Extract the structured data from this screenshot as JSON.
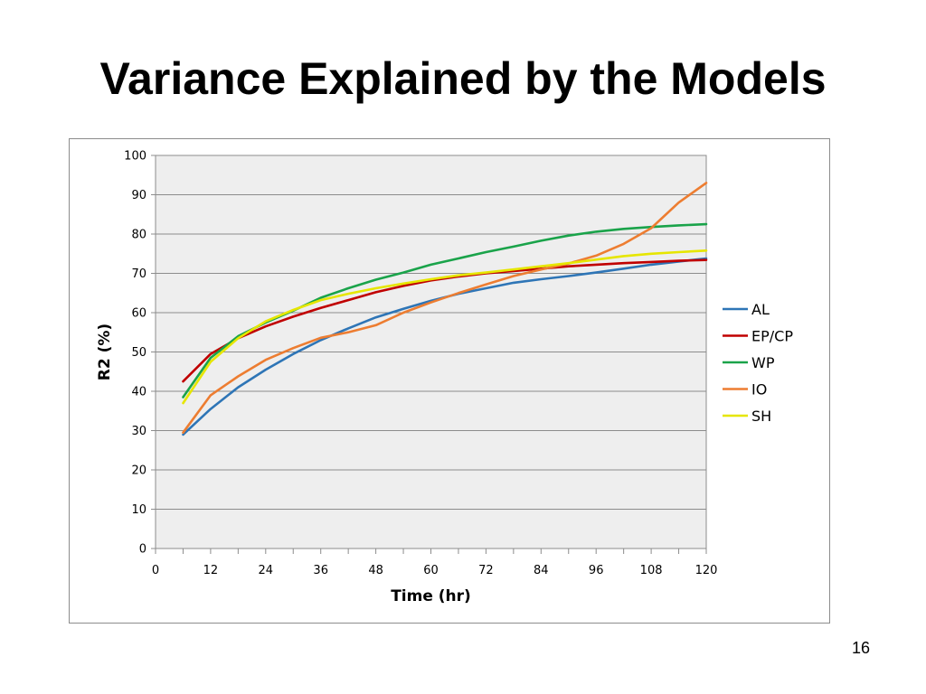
{
  "slide": {
    "title": "Variance Explained by the Models",
    "page_number": "16"
  },
  "chart_data": {
    "type": "line",
    "title": "",
    "xlabel": "Time (hr)",
    "ylabel": "R2 (%)",
    "xlim": [
      0,
      120
    ],
    "ylim": [
      0,
      100
    ],
    "xticks": [
      0,
      12,
      24,
      36,
      48,
      60,
      72,
      84,
      96,
      108,
      120
    ],
    "yticks": [
      0,
      10,
      20,
      30,
      40,
      50,
      60,
      70,
      80,
      90,
      100
    ],
    "grid": "horizontal",
    "legend_position": "right",
    "plot_background": "#eeeeee",
    "x": [
      6,
      12,
      18,
      24,
      30,
      36,
      42,
      48,
      54,
      60,
      66,
      72,
      78,
      84,
      90,
      96,
      102,
      108,
      114,
      120
    ],
    "series": [
      {
        "name": "AL",
        "color": "#2e75b6",
        "values": [
          29,
          35.5,
          41,
          45.5,
          49.5,
          53,
          56,
          58.8,
          61,
          63,
          64.8,
          66.2,
          67.6,
          68.5,
          69.3,
          70.2,
          71.2,
          72.2,
          73,
          73.8
        ]
      },
      {
        "name": "EP/CP",
        "color": "#c00000",
        "values": [
          42.5,
          49.5,
          53.5,
          56.5,
          59,
          61.2,
          63.2,
          65.2,
          66.8,
          68.2,
          69.2,
          70,
          70.6,
          71.2,
          71.8,
          72.2,
          72.6,
          72.9,
          73.2,
          73.4
        ]
      },
      {
        "name": "WP",
        "color": "#1aa34a",
        "values": [
          38.5,
          48.5,
          54,
          57.5,
          60.5,
          63.8,
          66.2,
          68.4,
          70.2,
          72.2,
          73.8,
          75.4,
          76.8,
          78.3,
          79.6,
          80.6,
          81.3,
          81.8,
          82.2,
          82.5
        ]
      },
      {
        "name": "IO",
        "color": "#ed7d31",
        "values": [
          29.5,
          39,
          43.8,
          48,
          51,
          53.6,
          55,
          56.8,
          60,
          62.6,
          65,
          67.2,
          69.3,
          71,
          72.5,
          74.5,
          77.5,
          81.5,
          88,
          93
        ]
      },
      {
        "name": "SH",
        "color": "#e6e600",
        "values": [
          37,
          47.5,
          53.5,
          57.8,
          60.7,
          63.2,
          64.8,
          66.2,
          67.4,
          68.5,
          69.5,
          70.2,
          71,
          71.8,
          72.6,
          73.5,
          74.4,
          75,
          75.4,
          75.8
        ]
      }
    ]
  }
}
